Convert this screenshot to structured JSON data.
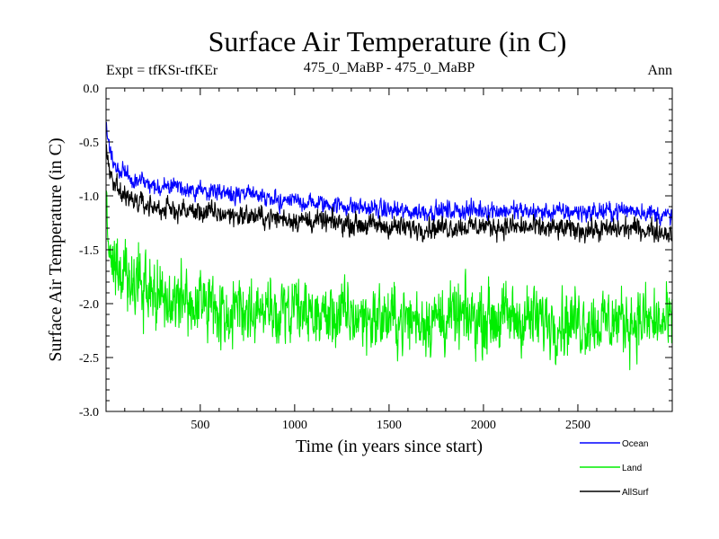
{
  "chart_data": {
    "type": "line",
    "title": "Surface Air Temperature (in C)",
    "subtitle_left": "Expt = tfKSr-tfKEr",
    "subtitle_center": "475_0_MaBP - 475_0_MaBP",
    "subtitle_right": "Ann",
    "xlabel": "Time (in years since start)",
    "ylabel": "Surface Air Temperature (in C)",
    "xlim": [
      1,
      3000
    ],
    "ylim": [
      -3.0,
      0.0
    ],
    "x_ticks": [
      500,
      1000,
      1500,
      2000,
      2500
    ],
    "x_tick_labels": [
      "500",
      "1000",
      "1500",
      "2000",
      "2500"
    ],
    "y_ticks": [
      0.0,
      -0.5,
      -1.0,
      -1.5,
      -2.0,
      -2.5,
      -3.0
    ],
    "y_tick_labels": [
      "0.0",
      "-0.5",
      "-1.0",
      "-1.5",
      "-2.0",
      "-2.5",
      "-3.0"
    ],
    "legend_position": "bottom-right, outside plot",
    "series": [
      {
        "name": "Ocean",
        "color": "#0000ff",
        "x": [
          1,
          20,
          50,
          100,
          200,
          300,
          500,
          700,
          1000,
          1300,
          1600,
          2000,
          2300,
          2600,
          2800,
          3000
        ],
        "values": [
          -0.3,
          -0.6,
          -0.72,
          -0.8,
          -0.88,
          -0.92,
          -0.95,
          -0.98,
          -1.05,
          -1.1,
          -1.15,
          -1.13,
          -1.15,
          -1.15,
          -1.13,
          -1.2
        ],
        "noise": 0.06
      },
      {
        "name": "Land",
        "color": "#00ee00",
        "x": [
          1,
          20,
          50,
          100,
          200,
          300,
          500,
          700,
          1000,
          1300,
          1600,
          2000,
          2300,
          2600,
          2800,
          3000
        ],
        "values": [
          -1.2,
          -1.5,
          -1.65,
          -1.75,
          -1.88,
          -1.95,
          -2.02,
          -2.05,
          -2.1,
          -2.12,
          -2.15,
          -2.13,
          -2.15,
          -2.17,
          -2.15,
          -2.2
        ],
        "noise": 0.22
      },
      {
        "name": "AllSurf",
        "color": "#000000",
        "x": [
          1,
          20,
          50,
          100,
          200,
          300,
          500,
          700,
          1000,
          1300,
          1600,
          2000,
          2300,
          2600,
          2800,
          3000
        ],
        "values": [
          -0.5,
          -0.8,
          -0.92,
          -1.0,
          -1.08,
          -1.12,
          -1.15,
          -1.18,
          -1.22,
          -1.26,
          -1.3,
          -1.28,
          -1.3,
          -1.32,
          -1.3,
          -1.35
        ],
        "noise": 0.07
      }
    ]
  }
}
